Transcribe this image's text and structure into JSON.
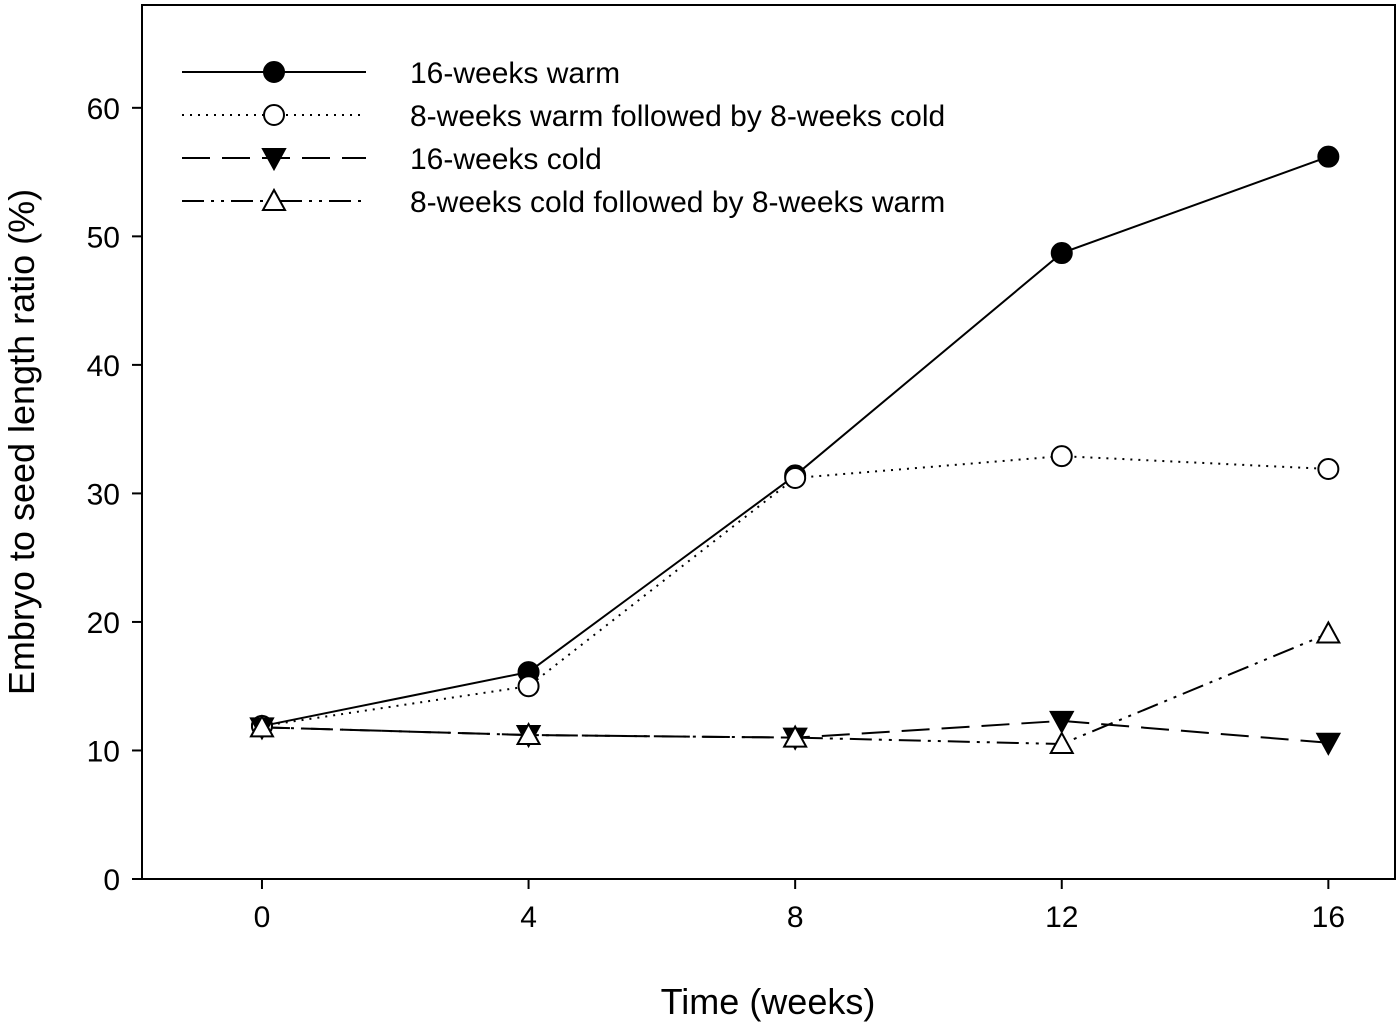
{
  "chart_data": {
    "type": "line",
    "title": "",
    "xlabel": "Time (weeks)",
    "ylabel": "Embryo to seed length ratio (%)",
    "xlim": [
      -1.8,
      17
    ],
    "ylim": [
      0,
      68
    ],
    "xticks": [
      0,
      4,
      8,
      12,
      16
    ],
    "yticks": [
      0,
      10,
      20,
      30,
      40,
      50,
      60
    ],
    "grid": false,
    "legend_placement": "top-left",
    "x": [
      0,
      4,
      8,
      12,
      16
    ],
    "series": [
      {
        "name": "16-weeks warm",
        "values": [
          11.9,
          16.1,
          31.4,
          48.7,
          56.2
        ],
        "marker": "filled-circle",
        "line": "solid"
      },
      {
        "name": "8-weeks warm followed by 8-weeks cold",
        "values": [
          11.9,
          15.0,
          31.2,
          32.9,
          31.9
        ],
        "marker": "open-circle",
        "line": "dotted"
      },
      {
        "name": "16-weeks cold",
        "values": [
          11.8,
          11.2,
          11.0,
          12.3,
          10.6
        ],
        "marker": "filled-triangle-down",
        "line": "dashed"
      },
      {
        "name": "8-weeks cold followed by 8-weeks warm",
        "values": [
          11.8,
          11.2,
          11.0,
          10.5,
          19.1
        ],
        "marker": "open-triangle-up",
        "line": "dash-dot-dot"
      }
    ]
  }
}
